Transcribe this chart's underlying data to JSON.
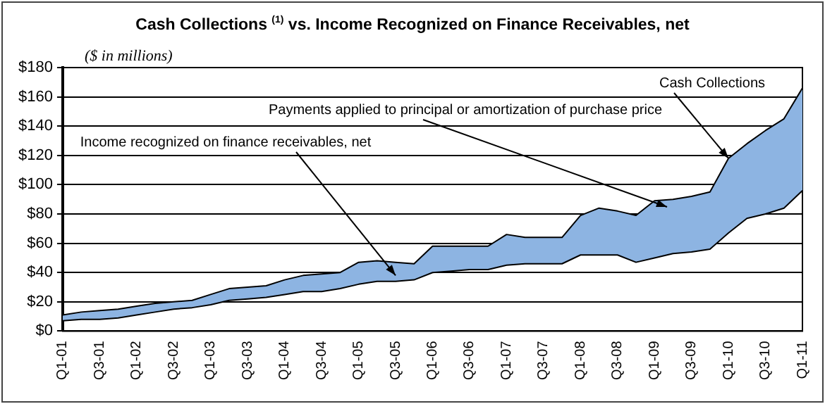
{
  "chart_data": {
    "type": "area",
    "title": "Cash Collections $^{(1)}$ vs. Income Recognized on Finance Receivables,  net",
    "subtitle": "($ in millions)",
    "categories": [
      "Q1-01",
      null,
      "Q3-01",
      null,
      "Q1-02",
      null,
      "Q3-02",
      null,
      "Q1-03",
      null,
      "Q3-03",
      null,
      "Q1-04",
      null,
      "Q3-04",
      null,
      "Q1-05",
      null,
      "Q3-05",
      null,
      "Q1-06",
      null,
      "Q3-06",
      null,
      "Q1-07",
      null,
      "Q3-07",
      null,
      "Q1-08",
      null,
      "Q3-08",
      null,
      "Q1-09",
      null,
      "Q3-09",
      null,
      "Q1-10",
      null,
      "Q3-10",
      null,
      "Q1-11"
    ],
    "series": [
      {
        "type": "line",
        "color": "#000000",
        "values": [
          7,
          8,
          8,
          9,
          11,
          13,
          15,
          16,
          18,
          21,
          22,
          23,
          25,
          27,
          27,
          29,
          32,
          34,
          34,
          35,
          40,
          41,
          42,
          42,
          45,
          46,
          46,
          46,
          52,
          52,
          52,
          47,
          50,
          53,
          54,
          56,
          67,
          77,
          80,
          84,
          96
        ]
      },
      {
        "color": "#8db4e2",
        "values": [
          11,
          13,
          14,
          15,
          17,
          19,
          20,
          21,
          25,
          29,
          30,
          31,
          35,
          38,
          39,
          40,
          47,
          48,
          47,
          46,
          58,
          58,
          58,
          58,
          66,
          64,
          64,
          64,
          79,
          84,
          82,
          79,
          89,
          90,
          92,
          95,
          118,
          128,
          137,
          145,
          166
        ]
      }
    ],
    "ylim": [
      0,
      180
    ],
    "yticks": [
      {
        "value": 0,
        "label": "$0"
      },
      {
        "value": 20,
        "label": "$20"
      },
      {
        "value": 40,
        "label": "$40"
      },
      {
        "value": 60,
        "label": "$60"
      },
      {
        "value": 80,
        "label": "$80"
      },
      {
        "value": 100,
        "label": "$100"
      },
      {
        "value": 120,
        "label": "$120"
      },
      {
        "value": 140,
        "label": "$140"
      },
      {
        "value": 160,
        "label": "$160"
      },
      {
        "value": 180,
        "label": "$180"
      }
    ],
    "grid": "y",
    "legend": false,
    "marker": "none",
    "line_style": "solid",
    "annotations": [
      {
        "text": "Cash Collections",
        "x": "Q1-10",
        "y": 118
      },
      "Payments applied to principal or amortization of purchase price",
      {
        "text": "Income recognized on finance receivables, net",
        "x": "Q3-05",
        "y": 38
      }
    ]
  }
}
